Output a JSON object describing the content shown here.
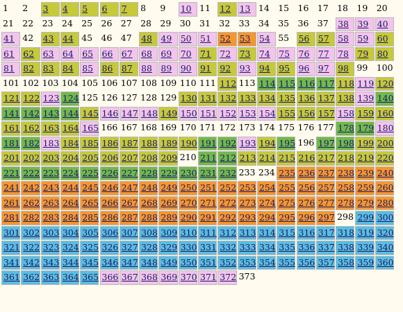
{
  "colors": {
    "background": "#fffbee",
    "none": "transparent",
    "pink": "#f3c4ec",
    "olive": "#c6c93a",
    "green": "#72b94c",
    "orange": "#f5962f",
    "blue": "#5bbde0"
  },
  "runs": [
    [
      1,
      2,
      "none"
    ],
    [
      3,
      7,
      "olive"
    ],
    [
      8,
      9,
      "none"
    ],
    [
      10,
      10,
      "pink"
    ],
    [
      11,
      11,
      "none"
    ],
    [
      12,
      12,
      "olive"
    ],
    [
      13,
      13,
      "pink"
    ],
    [
      14,
      37,
      "none"
    ],
    [
      38,
      40,
      "pink"
    ],
    [
      41,
      41,
      "pink"
    ],
    [
      42,
      42,
      "none"
    ],
    [
      43,
      44,
      "olive"
    ],
    [
      45,
      47,
      "none"
    ],
    [
      48,
      48,
      "olive"
    ],
    [
      49,
      51,
      "pink"
    ],
    [
      52,
      53,
      "orange"
    ],
    [
      54,
      54,
      "pink"
    ],
    [
      55,
      55,
      "none"
    ],
    [
      56,
      57,
      "olive"
    ],
    [
      58,
      59,
      "pink"
    ],
    [
      60,
      60,
      "olive"
    ],
    [
      61,
      61,
      "pink"
    ],
    [
      62,
      62,
      "olive"
    ],
    [
      63,
      70,
      "pink"
    ],
    [
      71,
      71,
      "olive"
    ],
    [
      72,
      72,
      "pink"
    ],
    [
      73,
      73,
      "olive"
    ],
    [
      74,
      78,
      "pink"
    ],
    [
      79,
      80,
      "olive"
    ],
    [
      81,
      81,
      "pink"
    ],
    [
      82,
      84,
      "olive"
    ],
    [
      85,
      85,
      "pink"
    ],
    [
      86,
      87,
      "olive"
    ],
    [
      88,
      90,
      "pink"
    ],
    [
      91,
      92,
      "olive"
    ],
    [
      93,
      93,
      "pink"
    ],
    [
      94,
      95,
      "olive"
    ],
    [
      96,
      97,
      "pink"
    ],
    [
      98,
      98,
      "olive"
    ],
    [
      99,
      111,
      "none"
    ],
    [
      112,
      112,
      "olive"
    ],
    [
      113,
      113,
      "none"
    ],
    [
      114,
      117,
      "green"
    ],
    [
      118,
      118,
      "olive"
    ],
    [
      119,
      119,
      "pink"
    ],
    [
      120,
      120,
      "olive"
    ],
    [
      121,
      122,
      "olive"
    ],
    [
      123,
      123,
      "pink"
    ],
    [
      124,
      124,
      "green"
    ],
    [
      125,
      129,
      "none"
    ],
    [
      130,
      138,
      "olive"
    ],
    [
      139,
      139,
      "pink"
    ],
    [
      140,
      140,
      "green"
    ],
    [
      141,
      144,
      "green"
    ],
    [
      145,
      145,
      "olive"
    ],
    [
      146,
      148,
      "pink"
    ],
    [
      149,
      149,
      "olive"
    ],
    [
      150,
      154,
      "pink"
    ],
    [
      155,
      157,
      "olive"
    ],
    [
      158,
      158,
      "pink"
    ],
    [
      159,
      160,
      "olive"
    ],
    [
      161,
      164,
      "olive"
    ],
    [
      165,
      165,
      "pink"
    ],
    [
      166,
      177,
      "none"
    ],
    [
      178,
      179,
      "green"
    ],
    [
      180,
      180,
      "pink"
    ],
    [
      181,
      182,
      "green"
    ],
    [
      183,
      183,
      "pink"
    ],
    [
      184,
      190,
      "olive"
    ],
    [
      191,
      192,
      "green"
    ],
    [
      193,
      193,
      "pink"
    ],
    [
      194,
      194,
      "olive"
    ],
    [
      195,
      195,
      "green"
    ],
    [
      196,
      196,
      "none"
    ],
    [
      197,
      198,
      "green"
    ],
    [
      199,
      200,
      "olive"
    ],
    [
      201,
      209,
      "olive"
    ],
    [
      210,
      210,
      "none"
    ],
    [
      211,
      212,
      "green"
    ],
    [
      213,
      220,
      "olive"
    ],
    [
      221,
      232,
      "green"
    ],
    [
      233,
      234,
      "none"
    ],
    [
      235,
      240,
      "orange"
    ],
    [
      241,
      280,
      "orange"
    ],
    [
      281,
      297,
      "orange"
    ],
    [
      298,
      298,
      "none"
    ],
    [
      299,
      300,
      "blue"
    ],
    [
      301,
      365,
      "blue"
    ],
    [
      366,
      372,
      "pink"
    ],
    [
      373,
      373,
      "none"
    ]
  ]
}
